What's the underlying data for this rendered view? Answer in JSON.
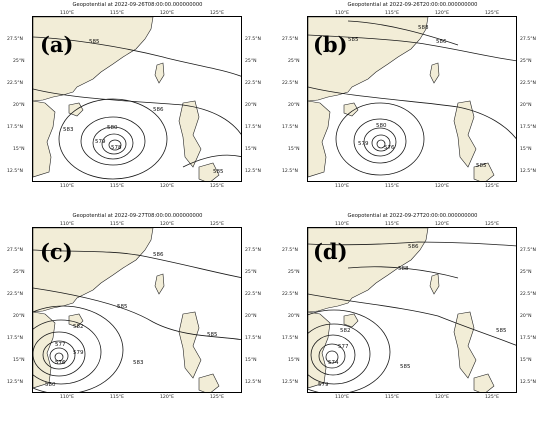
{
  "panels": [
    {
      "label": "(a)",
      "title": "Geopotential at 2022-09-26T08:00:00.000000000",
      "contours": [
        {
          "t": "585"
        },
        {
          "t": "586"
        },
        {
          "t": "583"
        },
        {
          "t": "580"
        },
        {
          "t": "579"
        },
        {
          "t": "578"
        },
        {
          "t": "585"
        }
      ],
      "top_ticks": [
        "110°E",
        "115°E",
        "120°E",
        "125°E"
      ],
      "bottom_ticks": [
        "110°E",
        "115°E",
        "120°E",
        "125°E"
      ],
      "left_ticks": [
        "27.5°N",
        "25°N",
        "22.5°N",
        "20°N",
        "17.5°N",
        "15°N",
        "12.5°N"
      ],
      "right_ticks": [
        "27.5°N",
        "25°N",
        "22.5°N",
        "20°N",
        "17.5°N",
        "15°N",
        "12.5°N"
      ]
    },
    {
      "label": "(b)",
      "title": "Geopotential at 2022-09-26T20:00:00.000000000",
      "contours": [
        {
          "t": "585"
        },
        {
          "t": "586"
        },
        {
          "t": "588"
        },
        {
          "t": "580"
        },
        {
          "t": "579"
        },
        {
          "t": "576"
        },
        {
          "t": "585"
        }
      ],
      "top_ticks": [
        "110°E",
        "115°E",
        "120°E",
        "125°E"
      ],
      "bottom_ticks": [
        "110°E",
        "115°E",
        "120°E",
        "125°E"
      ],
      "left_ticks": [
        "27.5°N",
        "25°N",
        "22.5°N",
        "20°N",
        "17.5°N",
        "15°N",
        "12.5°N"
      ],
      "right_ticks": [
        "27.5°N",
        "25°N",
        "22.5°N",
        "20°N",
        "17.5°N",
        "15°N",
        "12.5°N"
      ]
    },
    {
      "label": "(c)",
      "title": "Geopotential at 2022-09-27T08:00:00.000000000",
      "contours": [
        {
          "t": "586"
        },
        {
          "t": "585"
        },
        {
          "t": "582"
        },
        {
          "t": "577"
        },
        {
          "t": "579"
        },
        {
          "t": "576"
        },
        {
          "t": "580"
        },
        {
          "t": "583"
        },
        {
          "t": "585"
        }
      ],
      "top_ticks": [
        "110°E",
        "115°E",
        "120°E",
        "125°E"
      ],
      "bottom_ticks": [
        "110°E",
        "115°E",
        "120°E",
        "125°E"
      ],
      "left_ticks": [
        "27.5°N",
        "25°N",
        "22.5°N",
        "20°N",
        "17.5°N",
        "15°N",
        "12.5°N"
      ],
      "right_ticks": [
        "27.5°N",
        "25°N",
        "22.5°N",
        "20°N",
        "17.5°N",
        "15°N",
        "12.5°N"
      ]
    },
    {
      "label": "(d)",
      "title": "Geopotential at 2022-09-27T20:00:00.000000000",
      "contours": [
        {
          "t": "586"
        },
        {
          "t": "588"
        },
        {
          "t": "585"
        },
        {
          "t": "582"
        },
        {
          "t": "577"
        },
        {
          "t": "574"
        },
        {
          "t": "579"
        },
        {
          "t": "585"
        }
      ],
      "top_ticks": [
        "110°E",
        "115°E",
        "120°E",
        "125°E"
      ],
      "bottom_ticks": [
        "110°E",
        "115°E",
        "120°E",
        "125°E"
      ],
      "left_ticks": [
        "27.5°N",
        "25°N",
        "22.5°N",
        "20°N",
        "17.5°N",
        "15°N",
        "12.5°N"
      ],
      "right_ticks": [
        "27.5°N",
        "25°N",
        "22.5°N",
        "20°N",
        "17.5°N",
        "15°N",
        "12.5°N"
      ]
    }
  ],
  "colors": {
    "land": "#f2edd7",
    "sea": "#ffffff",
    "contour": "#1a1a1a",
    "coast": "#222222"
  }
}
